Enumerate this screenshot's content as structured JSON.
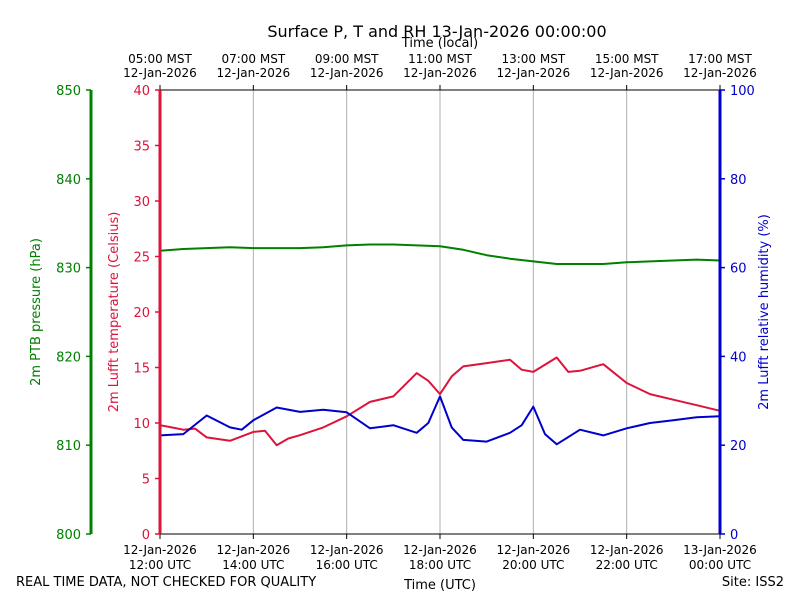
{
  "chart_data": {
    "type": "line",
    "title": "Surface P, T and RH 13-Jan-2026 00:00:00",
    "top_axis_title": "Time (local)",
    "bottom_axis_title": "Time (UTC)",
    "grid": "vertical",
    "x_ticks": [
      {
        "utc": "2026-01-12 12:00",
        "utc_date": "12-Jan-2026",
        "utc_time": "12:00 UTC",
        "local_date": "12-Jan-2026",
        "local_time": "05:00 MST"
      },
      {
        "utc": "2026-01-12 14:00",
        "utc_date": "12-Jan-2026",
        "utc_time": "14:00 UTC",
        "local_date": "12-Jan-2026",
        "local_time": "07:00 MST"
      },
      {
        "utc": "2026-01-12 16:00",
        "utc_date": "12-Jan-2026",
        "utc_time": "16:00 UTC",
        "local_date": "12-Jan-2026",
        "local_time": "09:00 MST"
      },
      {
        "utc": "2026-01-12 18:00",
        "utc_date": "12-Jan-2026",
        "utc_time": "18:00 UTC",
        "local_date": "12-Jan-2026",
        "local_time": "11:00 MST"
      },
      {
        "utc": "2026-01-12 20:00",
        "utc_date": "12-Jan-2026",
        "utc_time": "20:00 UTC",
        "local_date": "12-Jan-2026",
        "local_time": "13:00 MST"
      },
      {
        "utc": "2026-01-12 22:00",
        "utc_date": "12-Jan-2026",
        "utc_time": "22:00 UTC",
        "local_date": "12-Jan-2026",
        "local_time": "15:00 MST"
      },
      {
        "utc": "2026-01-13 00:00",
        "utc_date": "13-Jan-2026",
        "utc_time": "00:00 UTC",
        "local_date": "12-Jan-2026",
        "local_time": "17:00 MST"
      }
    ],
    "x_range": [
      "2026-01-12 12:00",
      "2026-01-13 00:00"
    ],
    "axes": {
      "pressure": {
        "label": "2m PTB pressure (hPa)",
        "color": "#008000",
        "ylim": [
          800,
          850
        ],
        "ticks": [
          800,
          810,
          820,
          830,
          840,
          850
        ]
      },
      "temperature": {
        "label": "2m Lufft temperature (Celsius)",
        "color": "#dc143c",
        "ylim": [
          0,
          40
        ],
        "ticks": [
          0,
          5,
          10,
          15,
          20,
          25,
          30,
          35,
          40
        ]
      },
      "humidity": {
        "label": "2m Lufft relative humidity (%)",
        "color": "#0000cd",
        "ylim": [
          0,
          100
        ],
        "ticks": [
          0,
          20,
          40,
          60,
          80,
          100
        ]
      }
    },
    "series": [
      {
        "axis": "pressure",
        "color": "#008000",
        "points": [
          [
            "2026-01-12 12:00",
            831.9
          ],
          [
            "2026-01-12 12:30",
            832.1
          ],
          [
            "2026-01-12 13:00",
            832.2
          ],
          [
            "2026-01-12 13:30",
            832.3
          ],
          [
            "2026-01-12 14:00",
            832.2
          ],
          [
            "2026-01-12 14:30",
            832.2
          ],
          [
            "2026-01-12 15:00",
            832.2
          ],
          [
            "2026-01-12 15:30",
            832.3
          ],
          [
            "2026-01-12 16:00",
            832.5
          ],
          [
            "2026-01-12 16:30",
            832.6
          ],
          [
            "2026-01-12 17:00",
            832.6
          ],
          [
            "2026-01-12 17:30",
            832.5
          ],
          [
            "2026-01-12 18:00",
            832.4
          ],
          [
            "2026-01-12 18:30",
            832.0
          ],
          [
            "2026-01-12 19:00",
            831.4
          ],
          [
            "2026-01-12 19:30",
            831.0
          ],
          [
            "2026-01-12 20:00",
            830.7
          ],
          [
            "2026-01-12 20:30",
            830.4
          ],
          [
            "2026-01-12 21:00",
            830.4
          ],
          [
            "2026-01-12 21:30",
            830.4
          ],
          [
            "2026-01-12 22:00",
            830.6
          ],
          [
            "2026-01-12 22:30",
            830.7
          ],
          [
            "2026-01-12 23:00",
            830.8
          ],
          [
            "2026-01-12 23:30",
            830.9
          ],
          [
            "2026-01-13 00:00",
            830.8
          ]
        ]
      },
      {
        "axis": "temperature",
        "color": "#dc143c",
        "points": [
          [
            "2026-01-12 12:00",
            9.8
          ],
          [
            "2026-01-12 12:15",
            9.6
          ],
          [
            "2026-01-12 12:30",
            9.4
          ],
          [
            "2026-01-12 12:45",
            9.5
          ],
          [
            "2026-01-12 13:00",
            8.7
          ],
          [
            "2026-01-12 13:30",
            8.4
          ],
          [
            "2026-01-12 14:00",
            9.2
          ],
          [
            "2026-01-12 14:15",
            9.3
          ],
          [
            "2026-01-12 14:30",
            8.0
          ],
          [
            "2026-01-12 14:45",
            8.6
          ],
          [
            "2026-01-12 15:00",
            8.9
          ],
          [
            "2026-01-12 15:30",
            9.6
          ],
          [
            "2026-01-12 16:00",
            10.6
          ],
          [
            "2026-01-12 16:30",
            11.9
          ],
          [
            "2026-01-12 17:00",
            12.4
          ],
          [
            "2026-01-12 17:30",
            14.5
          ],
          [
            "2026-01-12 17:45",
            13.8
          ],
          [
            "2026-01-12 18:00",
            12.6
          ],
          [
            "2026-01-12 18:15",
            14.2
          ],
          [
            "2026-01-12 18:30",
            15.1
          ],
          [
            "2026-01-12 19:00",
            15.4
          ],
          [
            "2026-01-12 19:30",
            15.7
          ],
          [
            "2026-01-12 19:45",
            14.8
          ],
          [
            "2026-01-12 20:00",
            14.6
          ],
          [
            "2026-01-12 20:30",
            15.9
          ],
          [
            "2026-01-12 20:45",
            14.6
          ],
          [
            "2026-01-12 21:00",
            14.7
          ],
          [
            "2026-01-12 21:30",
            15.3
          ],
          [
            "2026-01-12 22:00",
            13.6
          ],
          [
            "2026-01-12 22:30",
            12.6
          ],
          [
            "2026-01-12 23:00",
            12.1
          ],
          [
            "2026-01-12 23:30",
            11.6
          ],
          [
            "2026-01-13 00:00",
            11.1
          ]
        ]
      },
      {
        "axis": "humidity",
        "color": "#0000cd",
        "points": [
          [
            "2026-01-12 12:00",
            22.2
          ],
          [
            "2026-01-12 12:30",
            22.5
          ],
          [
            "2026-01-12 13:00",
            26.7
          ],
          [
            "2026-01-12 13:30",
            24.0
          ],
          [
            "2026-01-12 13:45",
            23.5
          ],
          [
            "2026-01-12 14:00",
            25.6
          ],
          [
            "2026-01-12 14:30",
            28.5
          ],
          [
            "2026-01-12 15:00",
            27.5
          ],
          [
            "2026-01-12 15:30",
            28.0
          ],
          [
            "2026-01-12 16:00",
            27.4
          ],
          [
            "2026-01-12 16:30",
            23.8
          ],
          [
            "2026-01-12 17:00",
            24.5
          ],
          [
            "2026-01-12 17:30",
            22.8
          ],
          [
            "2026-01-12 17:45",
            25.0
          ],
          [
            "2026-01-12 18:00",
            31.0
          ],
          [
            "2026-01-12 18:15",
            24.0
          ],
          [
            "2026-01-12 18:30",
            21.2
          ],
          [
            "2026-01-12 19:00",
            20.8
          ],
          [
            "2026-01-12 19:30",
            22.8
          ],
          [
            "2026-01-12 19:45",
            24.5
          ],
          [
            "2026-01-12 20:00",
            28.7
          ],
          [
            "2026-01-12 20:15",
            22.5
          ],
          [
            "2026-01-12 20:30",
            20.2
          ],
          [
            "2026-01-12 21:00",
            23.5
          ],
          [
            "2026-01-12 21:30",
            22.2
          ],
          [
            "2026-01-12 22:00",
            23.8
          ],
          [
            "2026-01-12 22:30",
            25.0
          ],
          [
            "2026-01-12 23:00",
            25.6
          ],
          [
            "2026-01-12 23:30",
            26.3
          ],
          [
            "2026-01-13 00:00",
            26.5
          ]
        ]
      }
    ]
  },
  "footer": {
    "disclaimer": "REAL TIME DATA, NOT CHECKED FOR QUALITY",
    "site": "Site: ISS2"
  }
}
